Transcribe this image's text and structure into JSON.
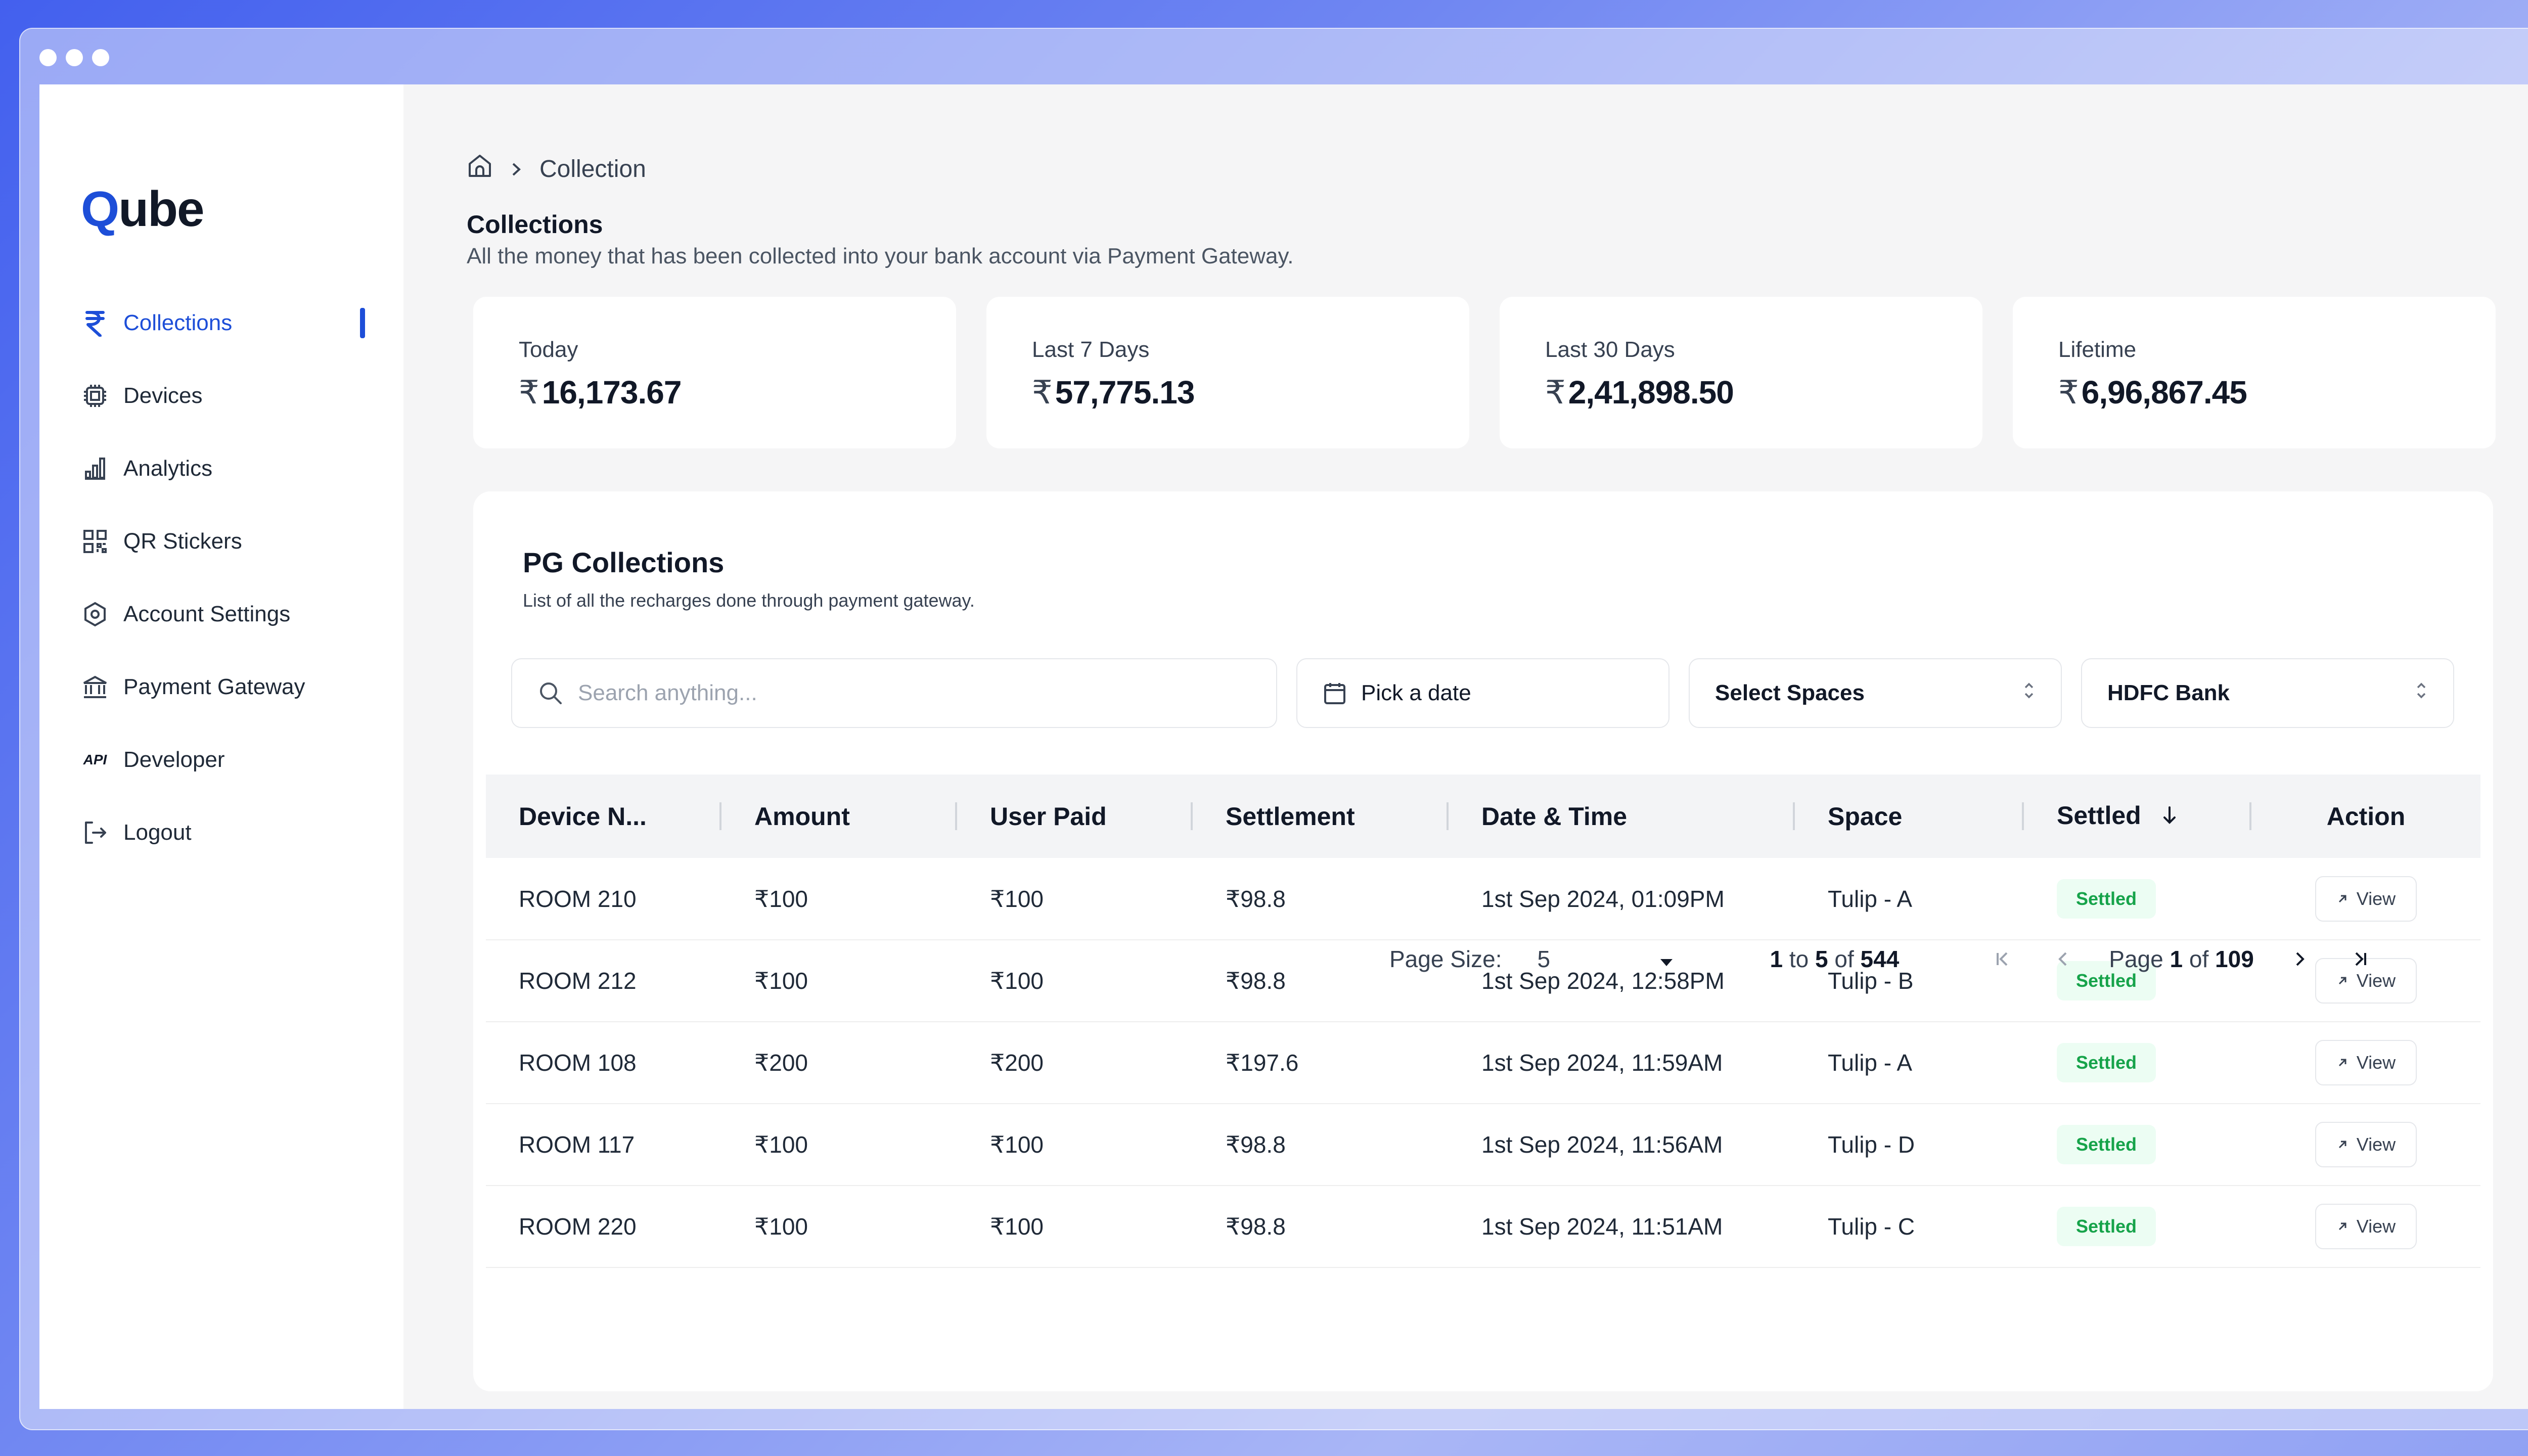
{
  "brand": {
    "logo_q": "Q",
    "logo_rest": "ube"
  },
  "sidebar": {
    "items": [
      {
        "label": "Collections",
        "icon": "rupee-icon"
      },
      {
        "label": "Devices",
        "icon": "chip-icon"
      },
      {
        "label": "Analytics",
        "icon": "bar-chart-icon"
      },
      {
        "label": "QR Stickers",
        "icon": "qr-code-icon"
      },
      {
        "label": "Account Settings",
        "icon": "hexagon-settings-icon"
      },
      {
        "label": "Payment Gateway",
        "icon": "bank-icon"
      },
      {
        "label": "Developer",
        "icon": "api-icon"
      },
      {
        "label": "Logout",
        "icon": "logout-icon"
      }
    ],
    "active": "Collections",
    "api_text": "API"
  },
  "breadcrumb": {
    "current": "Collection"
  },
  "header": {
    "title": "Collections",
    "subtitle": "All the money that has been collected into your bank account via Payment Gateway."
  },
  "currency_symbol": "₹",
  "stats": [
    {
      "label": "Today",
      "value": "16,173.67"
    },
    {
      "label": "Last 7 Days",
      "value": "57,775.13"
    },
    {
      "label": "Last 30 Days",
      "value": "2,41,898.50"
    },
    {
      "label": "Lifetime",
      "value": "6,96,867.45"
    }
  ],
  "panel": {
    "title": "PG Collections",
    "subtitle": "List of all the recharges done through payment gateway."
  },
  "filters": {
    "search_placeholder": "Search anything...",
    "date_label": "Pick a date",
    "spaces_label": "Select Spaces",
    "bank_label": "HDFC Bank"
  },
  "table": {
    "columns": [
      "Device N...",
      "Amount",
      "User Paid",
      "Settlement",
      "Date & Time",
      "Space",
      "Settled",
      "Action"
    ],
    "rows": [
      {
        "device": "ROOM 210",
        "amount": "₹100",
        "paid": "₹100",
        "settlement": "₹98.8",
        "datetime": "1st Sep 2024, 01:09PM",
        "space": "Tulip - A",
        "status": "Settled",
        "action": "View"
      },
      {
        "device": "ROOM 212",
        "amount": "₹100",
        "paid": "₹100",
        "settlement": "₹98.8",
        "datetime": "1st Sep 2024, 12:58PM",
        "space": "Tulip - B",
        "status": "Settled",
        "action": "View"
      },
      {
        "device": "ROOM 108",
        "amount": "₹200",
        "paid": "₹200",
        "settlement": "₹197.6",
        "datetime": "1st Sep 2024, 11:59AM",
        "space": "Tulip - A",
        "status": "Settled",
        "action": "View"
      },
      {
        "device": "ROOM 117",
        "amount": "₹100",
        "paid": "₹100",
        "settlement": "₹98.8",
        "datetime": "1st Sep 2024, 11:56AM",
        "space": "Tulip - D",
        "status": "Settled",
        "action": "View"
      },
      {
        "device": "ROOM 220",
        "amount": "₹100",
        "paid": "₹100",
        "settlement": "₹98.8",
        "datetime": "1st Sep 2024, 11:51AM",
        "space": "Tulip - C",
        "status": "Settled",
        "action": "View"
      }
    ]
  },
  "pagination": {
    "page_size_label": "Page Size:",
    "page_size": "5",
    "range_from": "1",
    "range_to": "5",
    "total": "544",
    "range_to_word": "to",
    "range_of_word": "of",
    "page_word": "Page",
    "page_of_word": "of",
    "current_page": "1",
    "total_pages": "109"
  },
  "colors": {
    "accent": "#1d4ed8",
    "settled_bg": "#ecfdf3",
    "settled_text": "#16a34a"
  }
}
